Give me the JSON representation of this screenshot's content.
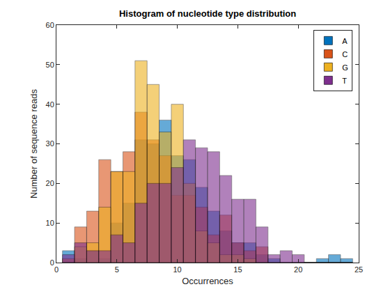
{
  "chart_data": {
    "type": "histogram",
    "title": "Histogram of nucleotide type distribution",
    "x_label": "Occurrences",
    "y_label": "Number of sequence reads",
    "bins": [
      0.5,
      1.5,
      2.5,
      3.5,
      4.5,
      5.5,
      6.5,
      7.5,
      8.5,
      9.5,
      10.5,
      11.5,
      12.5,
      13.5,
      14.5,
      15.5,
      16.5,
      17.5,
      18.5,
      19.5,
      20.5,
      21.5,
      22.5,
      23.5,
      24.5
    ],
    "series": [
      {
        "name": "A",
        "color": "#0072BD",
        "values": [
          3,
          1,
          3,
          1,
          10,
          15,
          31,
          30,
          36,
          27,
          26,
          19,
          13,
          8,
          5,
          5,
          2,
          1,
          0,
          0,
          0,
          1,
          2,
          1
        ]
      },
      {
        "name": "C",
        "color": "#D95319",
        "values": [
          1,
          9,
          13,
          26,
          23,
          28,
          38,
          31,
          27,
          17,
          17,
          14,
          7,
          12,
          5,
          3,
          4,
          0,
          0,
          0,
          0,
          0,
          0,
          0
        ]
      },
      {
        "name": "G",
        "color": "#EDB120",
        "values": [
          0,
          4,
          5,
          14,
          23,
          23,
          51,
          45,
          33,
          40,
          20,
          8,
          5,
          2,
          2,
          1,
          0,
          0,
          0,
          0,
          0,
          0,
          0,
          0
        ]
      },
      {
        "name": "T",
        "color": "#7E2F8E",
        "values": [
          2,
          5,
          3,
          3,
          7,
          5,
          15,
          20,
          20,
          24,
          31,
          29,
          28,
          22,
          16,
          16,
          9,
          2,
          3,
          2,
          0,
          0,
          0,
          0
        ]
      }
    ],
    "xlim": [
      0,
      25
    ],
    "xticks": [
      0,
      5,
      10,
      15,
      20,
      25
    ],
    "ylim": [
      0,
      60
    ],
    "yticks": [
      0,
      10,
      20,
      30,
      40,
      50,
      60
    ],
    "legend": "upper right",
    "grid": false
  }
}
